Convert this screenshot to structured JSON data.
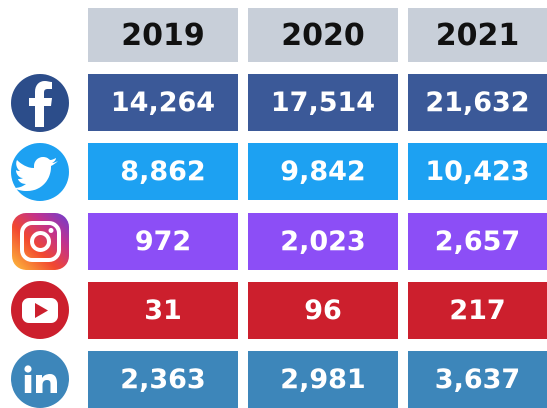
{
  "table": {
    "header": [
      "2019",
      "2020",
      "2021"
    ],
    "header_color": "#c8cfd9",
    "rows": [
      [
        "14,264",
        "17,514",
        "21,632"
      ],
      [
        "8,862",
        "9,842",
        "10,423"
      ],
      [
        "972",
        "2,023",
        "2,657"
      ],
      [
        "31",
        "96",
        "217"
      ],
      [
        "2,363",
        "2,981",
        "3,637"
      ]
    ],
    "row_colors": [
      "#3b5998",
      "#1da1f2",
      "#8c4ef6",
      "#cc1f2d",
      "#3d86ba"
    ]
  }
}
